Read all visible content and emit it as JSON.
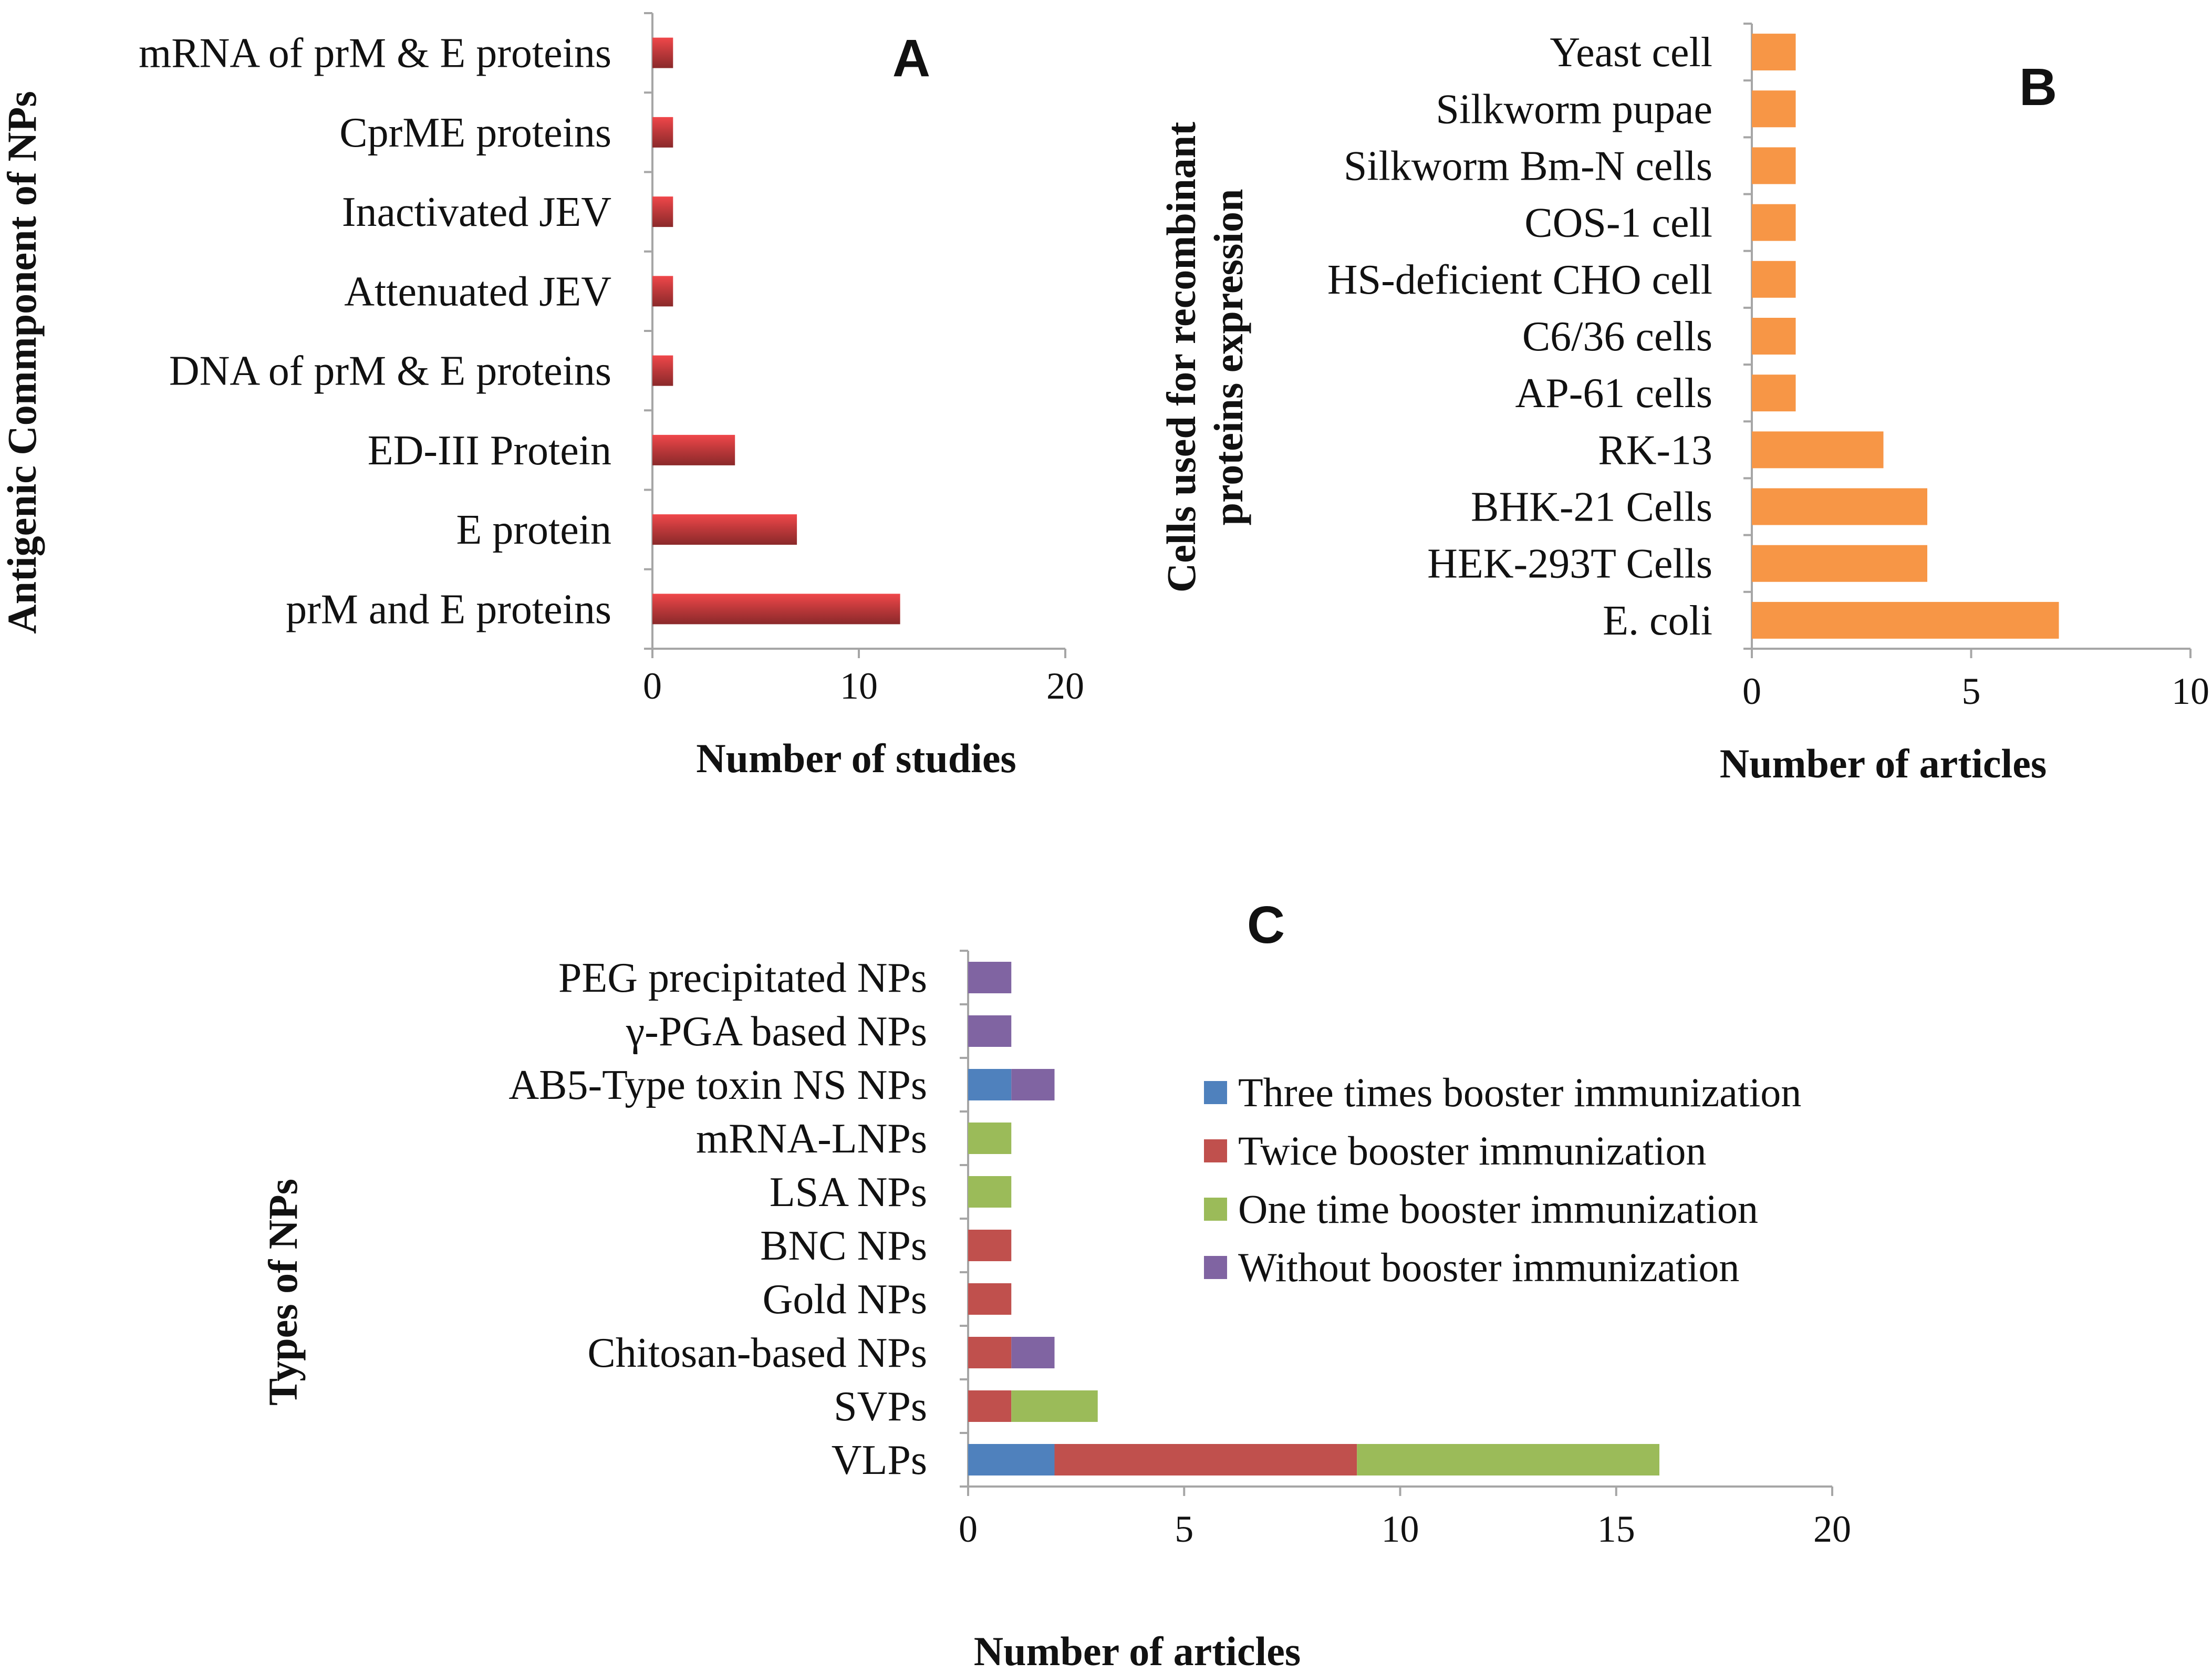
{
  "chart_data": [
    {
      "panel": "A",
      "type": "bar",
      "orientation": "horizontal",
      "categories": [
        "prM and E proteins",
        "E protein",
        "ED-III Protein",
        "DNA of prM & E proteins",
        "Attenuated JEV",
        "Inactivated JEV",
        "CprME proteins",
        "mRNA of prM & E proteins"
      ],
      "values": [
        12,
        7,
        4,
        1,
        1,
        1,
        1,
        1
      ],
      "xlabel": "Number of studies",
      "ylabel": "Antigenic Commponent of NPs",
      "xlim": [
        0,
        20
      ],
      "xticks": [
        0,
        10,
        20
      ],
      "color": "#C0393B",
      "grid": false
    },
    {
      "panel": "B",
      "type": "bar",
      "orientation": "horizontal",
      "categories": [
        "E. coli",
        "HEK-293T Cells",
        "BHK-21 Cells",
        "RK-13",
        "AP-61 cells",
        "C6/36 cells",
        "HS-deficient CHO cell",
        "COS-1 cell",
        "Silkworm Bm-N cells",
        "Silkworm pupae",
        "Yeast cell"
      ],
      "values": [
        7,
        4,
        4,
        3,
        1,
        1,
        1,
        1,
        1,
        1,
        1
      ],
      "xlabel": "Number of articles",
      "ylabel_lines": [
        "Cells used  for recombinant",
        "proteins expression"
      ],
      "xlim": [
        0,
        10
      ],
      "xticks": [
        0,
        5,
        10
      ],
      "color": "#F79646",
      "grid": false
    },
    {
      "panel": "C",
      "type": "bar",
      "orientation": "horizontal",
      "stacked": true,
      "categories": [
        "VLPs",
        "SVPs",
        "Chitosan-based NPs",
        "Gold NPs",
        "BNC NPs",
        "LSA NPs",
        "mRNA-LNPs",
        "AB5-Type toxin NS NPs",
        "γ-PGA based NPs",
        "PEG precipitated NPs"
      ],
      "series": [
        {
          "name": "Three times  booster immunization",
          "color": "#4F81BD",
          "values": [
            2,
            0,
            0,
            0,
            0,
            0,
            0,
            1,
            0,
            0
          ]
        },
        {
          "name": "Twice  booster immunization",
          "color": "#C0504D",
          "values": [
            7,
            1,
            1,
            1,
            1,
            0,
            0,
            0,
            0,
            0
          ]
        },
        {
          "name": "One time  booster immunization",
          "color": "#9BBB59",
          "values": [
            7,
            2,
            0,
            0,
            0,
            1,
            1,
            0,
            0,
            0
          ]
        },
        {
          "name": "Without booster immunization",
          "color": "#8064A2",
          "values": [
            0,
            0,
            1,
            0,
            0,
            0,
            0,
            1,
            1,
            1
          ]
        }
      ],
      "xlabel": "Number of articles",
      "ylabel": "Types of NPs",
      "xlim": [
        0,
        20
      ],
      "xticks": [
        0,
        5,
        10,
        15,
        20
      ],
      "legend": "right",
      "grid": false
    }
  ]
}
